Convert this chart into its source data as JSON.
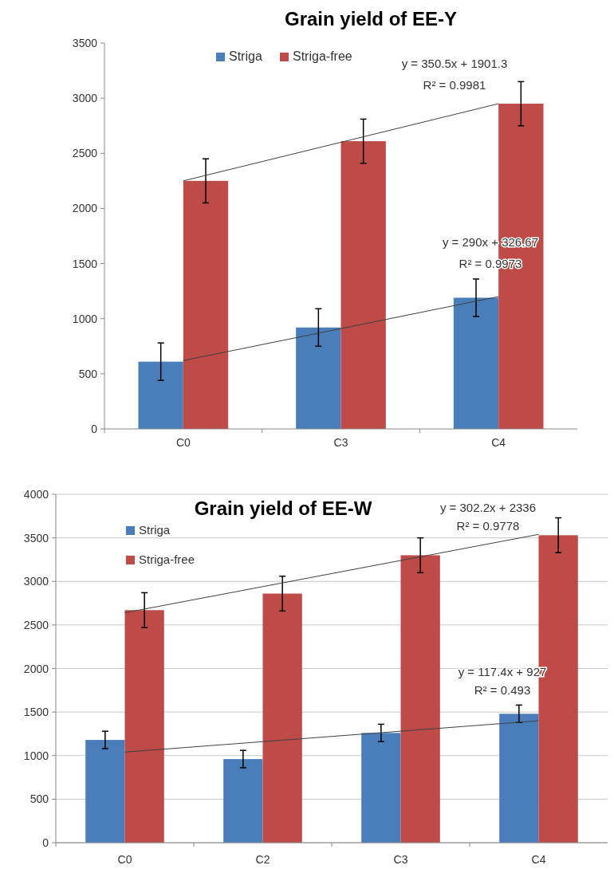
{
  "chart_data": [
    {
      "type": "bar",
      "title": "Grain yield of EE-Y",
      "categories": [
        "C0",
        "C3",
        "C4"
      ],
      "ylim": [
        0,
        3500
      ],
      "yticks": [
        0,
        500,
        1000,
        1500,
        2000,
        2500,
        3000,
        3500
      ],
      "grid": false,
      "legend": "top",
      "series": [
        {
          "name": "Striga",
          "color": "#4a7ebb",
          "values": [
            610,
            920,
            1190
          ],
          "errors": [
            170,
            170,
            170
          ]
        },
        {
          "name": "Striga-free",
          "color": "#be4b48",
          "values": [
            2250,
            2610,
            2950
          ],
          "errors": [
            200,
            200,
            200
          ]
        },
        {
          "type": "line",
          "color": "#404040",
          "values": [
            620,
            910,
            1200
          ]
        },
        {
          "type": "line",
          "color": "#404040",
          "values": [
            2250,
            2600,
            2950
          ]
        }
      ],
      "annotations": [
        "y = 350.5x + 1901.3",
        "R² = 0.9981",
        "y = 290x + 326.67",
        "R² = 0.9973"
      ]
    },
    {
      "type": "bar",
      "title": "Grain yield of EE-W",
      "categories": [
        "C0",
        "C2",
        "C3",
        "C4"
      ],
      "ylim": [
        0,
        4000
      ],
      "yticks": [
        0,
        500,
        1000,
        1500,
        2000,
        2500,
        3000,
        3500,
        4000
      ],
      "grid": "y",
      "legend": "top left",
      "series": [
        {
          "name": "Striga",
          "color": "#4a7ebb",
          "values": [
            1180,
            960,
            1260,
            1480
          ],
          "errors": [
            100,
            100,
            100,
            100
          ]
        },
        {
          "name": "Striga-free",
          "color": "#be4b48",
          "values": [
            2670,
            2860,
            3300,
            3530
          ],
          "errors": [
            200,
            200,
            200,
            200
          ]
        },
        {
          "type": "line",
          "color": "#404040",
          "values": [
            1040,
            1160,
            1280,
            1400
          ]
        },
        {
          "type": "line",
          "color": "#404040",
          "values": [
            2640,
            2940,
            3240,
            3540
          ]
        }
      ],
      "annotations": [
        "y = 302.2x + 2336",
        "R² = 0.9778",
        "y = 117.4x + 927",
        "R² = 0.493"
      ]
    }
  ]
}
